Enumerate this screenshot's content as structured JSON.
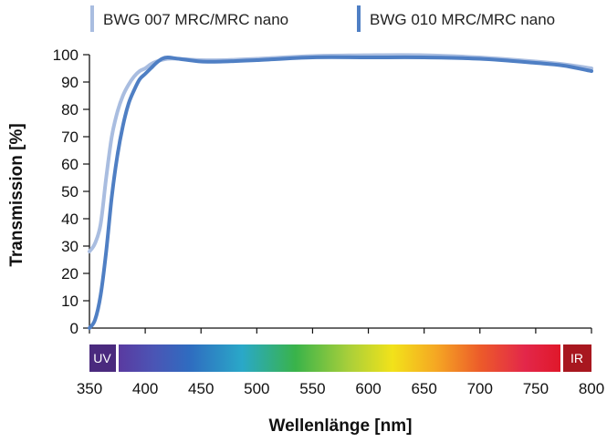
{
  "chart_data": {
    "type": "line",
    "xlabel": "Wellenlänge [nm]",
    "ylabel": "Transmission [%]",
    "xlim": [
      350,
      800
    ],
    "ylim": [
      0,
      100
    ],
    "x_ticks": [
      "350",
      "400",
      "450",
      "500",
      "550",
      "600",
      "650",
      "700",
      "750",
      "800"
    ],
    "y_ticks": [
      "0",
      "10",
      "20",
      "30",
      "40",
      "50",
      "60",
      "70",
      "80",
      "90",
      "100"
    ],
    "grid": false,
    "legend_position": "top",
    "series": [
      {
        "name": "BWG 007 MRC/MRC nano",
        "color": "#a9bde0",
        "x": [
          350,
          355,
          360,
          365,
          370,
          375,
          380,
          385,
          390,
          395,
          400,
          405,
          410,
          420,
          430,
          450,
          470,
          500,
          550,
          600,
          650,
          700,
          750,
          775,
          800
        ],
        "y": [
          28,
          31,
          38,
          55,
          70,
          79,
          85,
          89,
          92,
          94,
          95,
          96.5,
          97.5,
          98.5,
          98.5,
          98,
          98,
          98.5,
          99.5,
          99.8,
          99.8,
          99,
          97.5,
          96.5,
          95
        ]
      },
      {
        "name": "BWG 010 MRC/MRC nano",
        "color": "#4f7fc4",
        "x": [
          350,
          355,
          360,
          365,
          370,
          375,
          380,
          385,
          390,
          395,
          400,
          405,
          410,
          415,
          420,
          430,
          450,
          470,
          500,
          550,
          600,
          650,
          700,
          750,
          775,
          800
        ],
        "y": [
          0,
          3,
          12,
          28,
          48,
          63,
          74,
          82,
          87,
          91,
          93,
          95,
          97,
          98.5,
          99,
          98.5,
          97.5,
          97.5,
          98,
          99,
          99,
          99,
          98.5,
          97,
          96,
          94
        ]
      }
    ],
    "spectrum_band": {
      "uv_label": "UV",
      "ir_label": "IR",
      "uv_color": "#4a2a7e",
      "ir_color": "#a8171f"
    }
  }
}
